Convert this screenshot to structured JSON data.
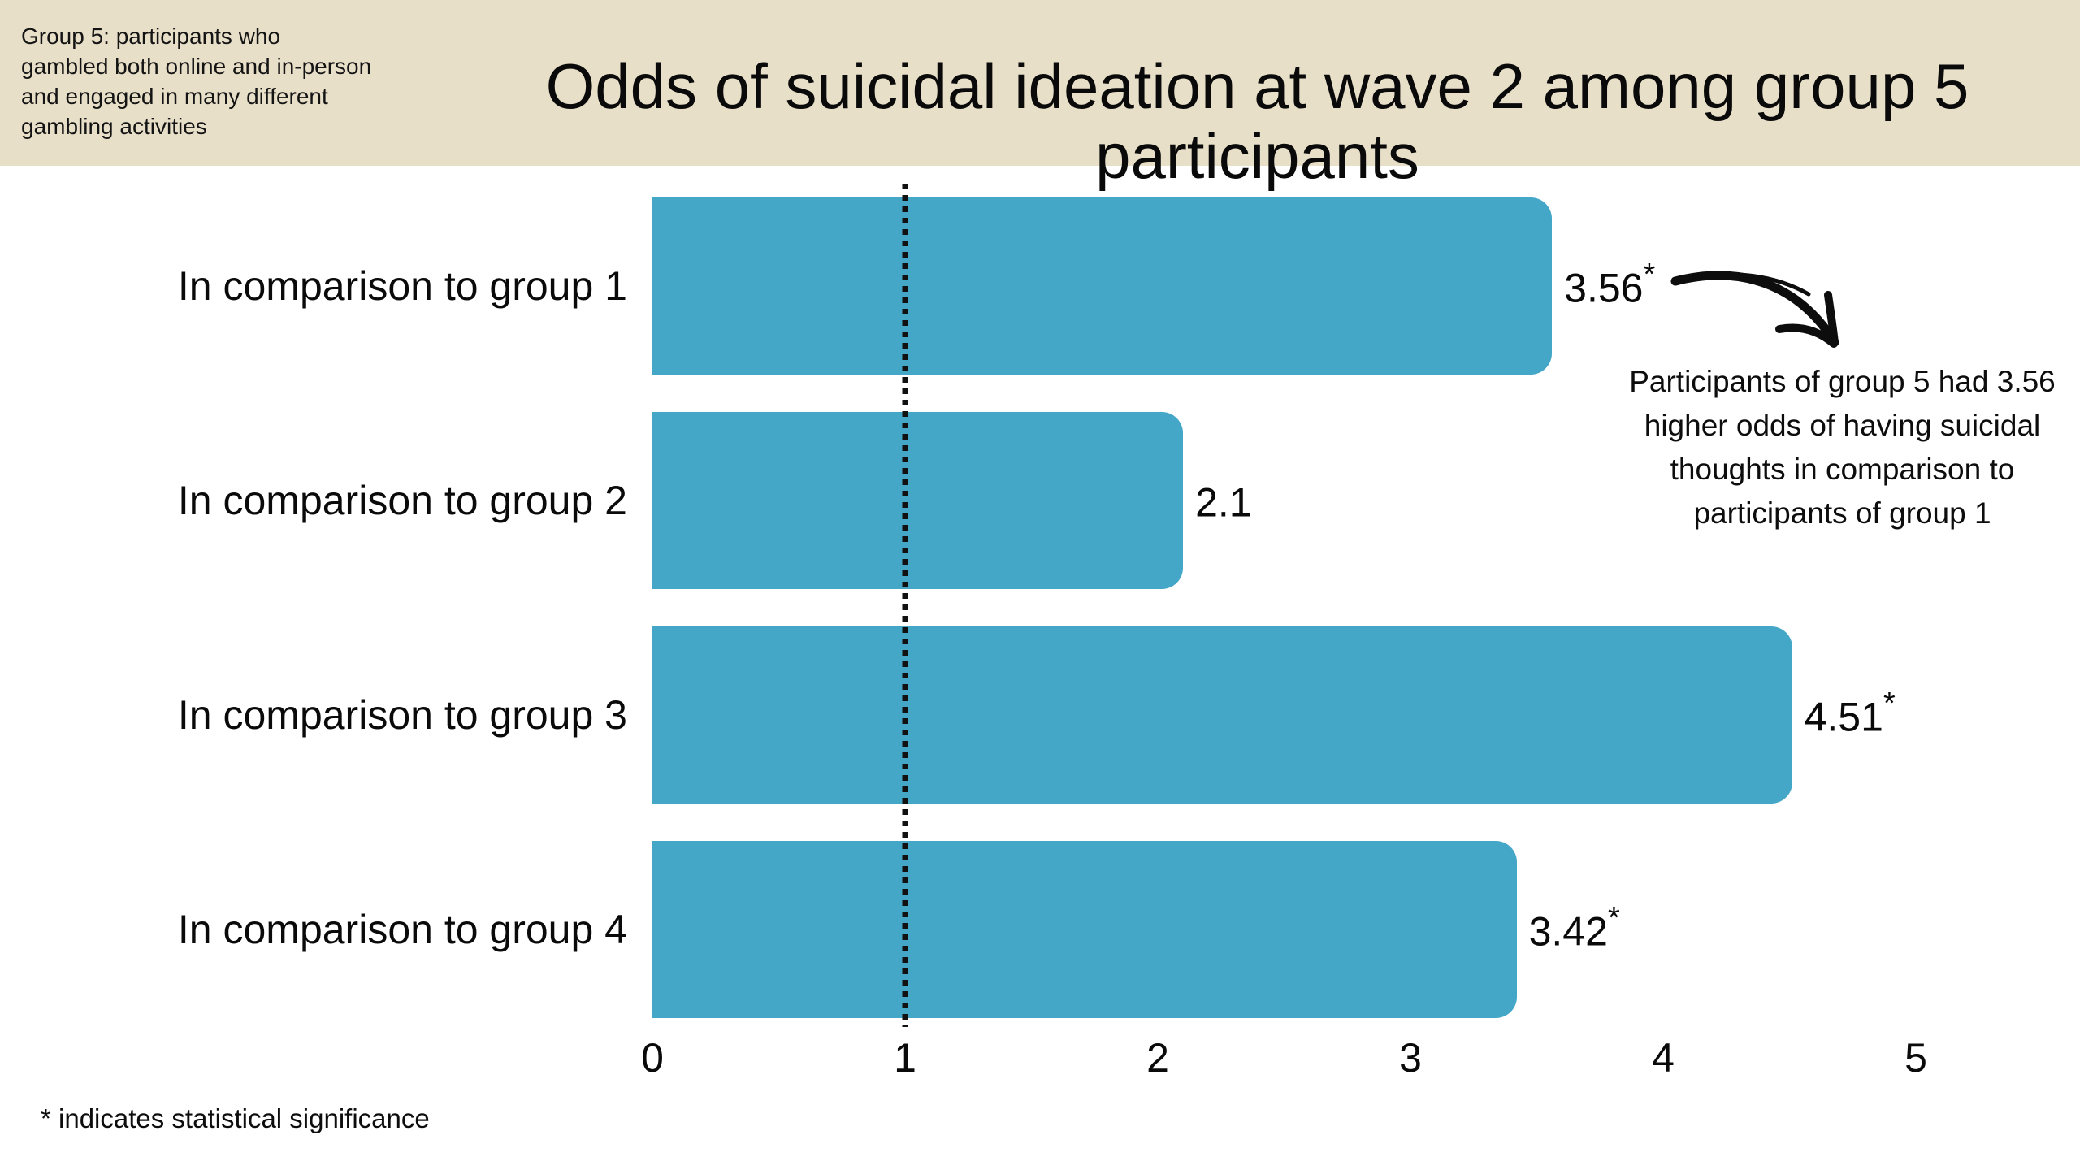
{
  "banner": {
    "note": "Group 5: participants who\ngambled both online and in-person\nand engaged in many different\ngambling activities",
    "title": "Odds of suicidal ideation at wave 2 among group 5 participants"
  },
  "chart_data": {
    "type": "bar",
    "orientation": "horizontal",
    "title": "Odds of suicidal ideation at wave 2 among group 5 participants",
    "categories": [
      "In comparison to group 1",
      "In comparison to group 2",
      "In comparison to group 3",
      "In comparison to group 4"
    ],
    "values": [
      3.56,
      2.1,
      4.51,
      3.42
    ],
    "value_labels": [
      "3.56",
      "2.1",
      "4.51",
      "3.42"
    ],
    "stars": [
      "*",
      "",
      "*",
      "*"
    ],
    "significant": [
      true,
      false,
      true,
      true
    ],
    "xlim": [
      0,
      5
    ],
    "tick_labels": [
      "0",
      "1",
      "2",
      "3",
      "4",
      "5"
    ],
    "reference_line_x": 1,
    "grid": false,
    "legend": "none"
  },
  "annotation": {
    "text": "Participants of group 5 had 3.56\nhigher odds of having suicidal\nthoughts in comparison to\nparticipants of group 1"
  },
  "footer": {
    "note": "* indicates statistical significance"
  },
  "colors": {
    "banner_bg": "#e8dfc9",
    "bar_color": "#44a7c7",
    "text": "#0d0d0d",
    "reference_line": "#111111",
    "background": "#ffffff"
  }
}
